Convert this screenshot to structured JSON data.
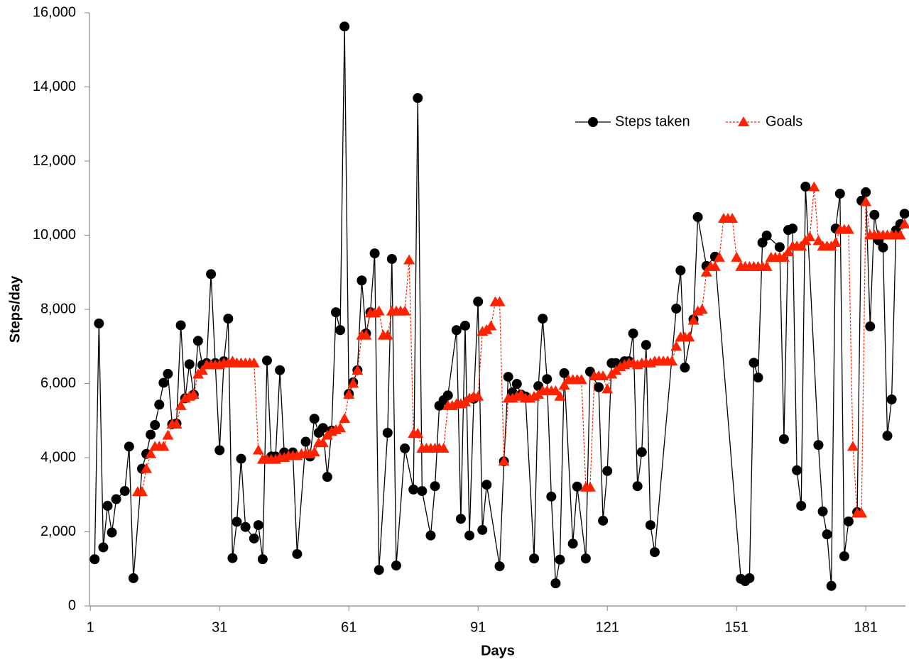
{
  "chart_data": {
    "type": "line",
    "x_label": "Days",
    "y_label": "Steps/day",
    "xlim": [
      0.8,
      190.2
    ],
    "xticks": [
      1,
      31,
      61,
      91,
      121,
      151,
      181
    ],
    "ylim": [
      0,
      16000
    ],
    "yticks": [
      0,
      {
        "value": 2000,
        "label": "2,000"
      },
      {
        "value": 4000,
        "label": "4,000"
      },
      {
        "value": 6000,
        "label": "6,000"
      },
      {
        "value": 8000,
        "label": "8,000"
      },
      {
        "value": 10000,
        "label": "10,000"
      },
      {
        "value": 12000,
        "label": "12,000"
      },
      {
        "value": 14000,
        "label": "14,000"
      },
      {
        "value": 16000,
        "label": "16,000"
      }
    ],
    "series": [
      {
        "name": "Steps taken",
        "color": "#000000",
        "marker": "circle",
        "dashed": false,
        "x": [
          2,
          3,
          4,
          5,
          6,
          7,
          9,
          10,
          11,
          13,
          14,
          15,
          16,
          17,
          18,
          19,
          20,
          21,
          22,
          23,
          24,
          25,
          26,
          27,
          28,
          29,
          30,
          31,
          32,
          33,
          34,
          35,
          36,
          37,
          39,
          40,
          41,
          42,
          43,
          44,
          45,
          46,
          48,
          49,
          51,
          52,
          53,
          54,
          55,
          56,
          57,
          58,
          59,
          60,
          61,
          62,
          63,
          64,
          65,
          66,
          67,
          68,
          70,
          71,
          72,
          74,
          76,
          77,
          78,
          80,
          81,
          82,
          83,
          84,
          86,
          87,
          88,
          89,
          90,
          91,
          92,
          93,
          96,
          97,
          98,
          99,
          100,
          101,
          102,
          104,
          105,
          106,
          107,
          108,
          109,
          110,
          111,
          113,
          114,
          116,
          117,
          119,
          120,
          121,
          122,
          123,
          124,
          125,
          126,
          127,
          128,
          129,
          130,
          131,
          132,
          137,
          138,
          139,
          141,
          142,
          144,
          146,
          152,
          153,
          154,
          155,
          156,
          157,
          158,
          161,
          162,
          163,
          164,
          165,
          166,
          167,
          170,
          171,
          172,
          173,
          174,
          175,
          176,
          177,
          179,
          180,
          181,
          182,
          183,
          184,
          185,
          186,
          187,
          188,
          189,
          190
        ],
        "values": [
          1260,
          7620,
          1580,
          2700,
          1980,
          2880,
          3100,
          4300,
          750,
          3700,
          4100,
          4620,
          4880,
          5430,
          6020,
          6260,
          4900,
          4920,
          7570,
          5600,
          6520,
          5700,
          7150,
          6500,
          6550,
          8950,
          6550,
          4200,
          6600,
          7750,
          1290,
          2270,
          3970,
          2130,
          1820,
          2180,
          1260,
          6620,
          4030,
          4030,
          6360,
          4140,
          4140,
          1400,
          4430,
          4030,
          5050,
          4670,
          4800,
          3480,
          4730,
          7920,
          7440,
          15630,
          5720,
          6030,
          6360,
          8780,
          7350,
          7920,
          9510,
          970,
          4670,
          9360,
          1090,
          4250,
          3140,
          13700,
          3100,
          1900,
          3230,
          5400,
          5550,
          5680,
          7440,
          2350,
          7560,
          1900,
          5590,
          8210,
          2050,
          3270,
          1070,
          3900,
          6180,
          5760,
          5990,
          5700,
          5650,
          1280,
          5930,
          7750,
          6120,
          2950,
          610,
          1250,
          6280,
          1680,
          3220,
          1280,
          6320,
          5900,
          2300,
          3640,
          6550,
          6550,
          6500,
          6600,
          6600,
          7350,
          3230,
          4150,
          7040,
          2180,
          1450,
          8020,
          9050,
          6430,
          7730,
          10490,
          9170,
          9420,
          730,
          670,
          750,
          6560,
          6160,
          9800,
          9990,
          9680,
          4500,
          10140,
          10180,
          3660,
          2700,
          11310,
          4340,
          2550,
          1930,
          540,
          10180,
          11120,
          1340,
          2280,
          2530,
          10930,
          11160,
          7540,
          10550,
          9860,
          9670,
          4590,
          5570,
          10130,
          10300,
          10580
        ]
      },
      {
        "name": "Goals",
        "color": "#ff2200",
        "marker": "triangle",
        "dashed": true,
        "x": [
          12,
          13,
          14,
          15,
          16,
          17,
          18,
          19,
          20,
          21,
          22,
          23,
          24,
          25,
          26,
          27,
          28,
          29,
          30,
          31,
          32,
          33,
          34,
          35,
          36,
          37,
          38,
          39,
          40,
          41,
          42,
          43,
          44,
          45,
          46,
          47,
          48,
          49,
          50,
          51,
          52,
          53,
          54,
          55,
          56,
          57,
          58,
          59,
          60,
          61,
          62,
          63,
          64,
          65,
          66,
          67,
          68,
          69,
          70,
          71,
          72,
          73,
          74,
          75,
          76,
          77,
          78,
          79,
          80,
          81,
          82,
          83,
          84,
          85,
          86,
          87,
          88,
          89,
          90,
          91,
          92,
          93,
          94,
          95,
          96,
          97,
          98,
          99,
          100,
          101,
          102,
          103,
          104,
          105,
          106,
          107,
          108,
          109,
          110,
          111,
          112,
          113,
          114,
          115,
          116,
          117,
          118,
          119,
          120,
          121,
          122,
          123,
          124,
          125,
          126,
          127,
          128,
          129,
          130,
          131,
          132,
          133,
          134,
          135,
          136,
          137,
          138,
          139,
          140,
          141,
          142,
          143,
          144,
          145,
          146,
          147,
          148,
          149,
          150,
          151,
          152,
          153,
          154,
          155,
          156,
          157,
          158,
          159,
          160,
          161,
          162,
          163,
          164,
          165,
          166,
          167,
          168,
          169,
          170,
          171,
          172,
          173,
          174,
          175,
          176,
          177,
          178,
          179,
          180,
          181,
          182,
          183,
          184,
          185,
          186,
          187,
          188,
          189,
          190
        ],
        "values": [
          3080,
          3080,
          3700,
          4100,
          4300,
          4300,
          4300,
          4600,
          4900,
          4900,
          5400,
          5600,
          5650,
          5700,
          6250,
          6350,
          6500,
          6500,
          6500,
          6500,
          6550,
          6550,
          6600,
          6550,
          6550,
          6550,
          6550,
          6550,
          4200,
          3950,
          3950,
          3950,
          3950,
          4000,
          4000,
          4050,
          4050,
          4050,
          4100,
          4100,
          4100,
          4150,
          4400,
          4400,
          4600,
          4700,
          4750,
          4800,
          5050,
          5700,
          6000,
          6350,
          7300,
          7300,
          7900,
          7900,
          7950,
          7300,
          7300,
          7950,
          7950,
          7950,
          7950,
          9330,
          4650,
          4650,
          4250,
          4250,
          4250,
          4250,
          4250,
          4250,
          5400,
          5400,
          5450,
          5450,
          5500,
          5600,
          5650,
          5650,
          7400,
          7450,
          7550,
          8200,
          8200,
          3900,
          5600,
          5600,
          5650,
          5700,
          5600,
          5600,
          5650,
          5700,
          5800,
          5800,
          5800,
          5800,
          5650,
          5950,
          6100,
          6100,
          6100,
          6100,
          3200,
          3200,
          6200,
          6200,
          6200,
          5850,
          6250,
          6350,
          6450,
          6500,
          6550,
          6550,
          6500,
          6550,
          6550,
          6550,
          6600,
          6600,
          6600,
          6600,
          6600,
          7000,
          7250,
          7250,
          7250,
          7700,
          7950,
          8000,
          9000,
          9150,
          9150,
          9400,
          10450,
          10450,
          10450,
          9400,
          9150,
          9150,
          9150,
          9150,
          9150,
          9150,
          9150,
          9400,
          9400,
          9400,
          9400,
          9550,
          9700,
          9700,
          9700,
          9850,
          9950,
          11300,
          9850,
          9700,
          9700,
          9700,
          9800,
          10150,
          10150,
          10150,
          4300,
          2500,
          2500,
          10900,
          10000,
          10000,
          10000,
          10000,
          10000,
          10000,
          10000,
          10000,
          10300
        ]
      }
    ]
  }
}
